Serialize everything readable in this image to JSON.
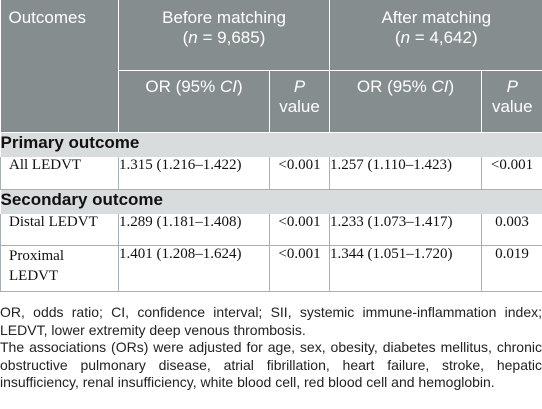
{
  "header": {
    "outcomes": "Outcomes",
    "before_title": "Before matching",
    "before_n_label": "n",
    "before_n_value": "= 9,685",
    "after_title": "After matching",
    "after_n_label": "n",
    "after_n_value": "= 4,642",
    "or_label": "OR (95% ",
    "or_ci": "CI",
    "or_close": ")",
    "p_label": "P",
    "p_value_label": "value"
  },
  "sections": [
    {
      "title": "Primary outcome",
      "rows": [
        {
          "outcome": "All LEDVT",
          "before_or": "1.315 (1.216–1.422)",
          "before_p": "<0.001",
          "after_or": "1.257 (1.110–1.423)",
          "after_p": "<0.001"
        }
      ]
    },
    {
      "title": "Secondary outcome",
      "rows": [
        {
          "outcome": "Distal LEDVT",
          "before_or": "1.289 (1.181–1.408)",
          "before_p": "<0.001",
          "after_or": "1.233 (1.073–1.417)",
          "after_p": "0.003"
        },
        {
          "outcome": "Proximal",
          "outcome_line2": "LEDVT",
          "before_or": "1.401 (1.208–1.624)",
          "before_p": "<0.001",
          "after_or": "1.344 (1.051–1.720)",
          "after_p": "0.019"
        }
      ]
    }
  ],
  "footnotes": [
    "OR, odds ratio; CI, confidence interval; SII, systemic immune-inflammation index; LEDVT, lower extremity deep venous thrombosis.",
    "The associations (ORs) were adjusted for age, sex, obesity, diabetes mellitus, chronic obstructive pulmonary disease, atrial fibrillation, heart failure, stroke, hepatic insufficiency, renal insufficiency, white blood cell, red blood cell and hemoglobin."
  ]
}
